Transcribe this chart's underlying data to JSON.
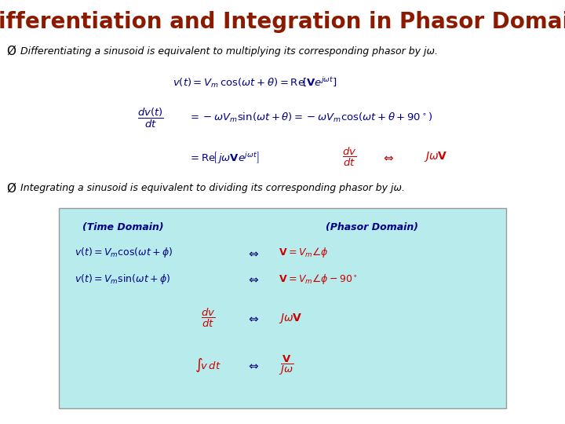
{
  "title": "Differentiation and Integration in Phasor Domain",
  "title_color": "#8B1A00",
  "bg_color": "#FFFFFF",
  "dark_blue": "#00008B",
  "red": "#CC0000",
  "black": "#000000",
  "box_bg": "#B8ECEC",
  "bullet1": "Differentiating a sinusoid is equivalent to multiplying its corresponding phasor by jω.",
  "bullet2": "Integrating a sinusoid is equivalent to dividing its corresponding phasor by jω.",
  "eq1": "$v(t) = V_m\\,\\cos(\\omega t+\\theta) = \\mathrm{Re}\\!\\left[\\mathbf{V}e^{j\\omega t}\\right]$",
  "eq2_lhs": "$\\dfrac{dv(t)}{dt}$",
  "eq2_rhs": "$= -\\omega V_m\\sin(\\omega t+\\theta) = -\\omega V_m\\cos(\\omega t+\\theta+90^\\circ)$",
  "eq3_lhs": "$= \\mathrm{Re}\\!\\left[\\,j\\omega\\mathbf{V}e^{j\\omega t}\\right]$",
  "eq3_frac": "$\\dfrac{dv}{dt}$",
  "eq3_arrow": "$\\Leftrightarrow$",
  "eq3_result": "$J\\omega\\mathbf{V}$",
  "hdr_left": "(Time Domain)",
  "hdr_right": "(Phasor Domain)",
  "r1_left": "$v(t) = V_m\\cos(\\omega t+\\phi)$",
  "r1_arr": "$\\Leftrightarrow$",
  "r1_right": "$\\mathbf{V} = V_m\\angle\\phi$",
  "r2_left": "$v(t) = V_m\\sin(\\omega t+\\phi)$",
  "r2_arr": "$\\Leftrightarrow$",
  "r2_right": "$\\mathbf{V} = V_m\\angle\\phi - 90^\\circ$",
  "r3_frac": "$\\dfrac{dv}{dt}$",
  "r3_arr": "$\\Leftrightarrow$",
  "r3_right": "$J\\omega\\mathbf{V}$",
  "r4_int": "$\\int\\!v\\,dt$",
  "r4_arr": "$\\Leftrightarrow$",
  "r4_frac": "$\\dfrac{\\mathbf{V}}{J\\omega}$"
}
